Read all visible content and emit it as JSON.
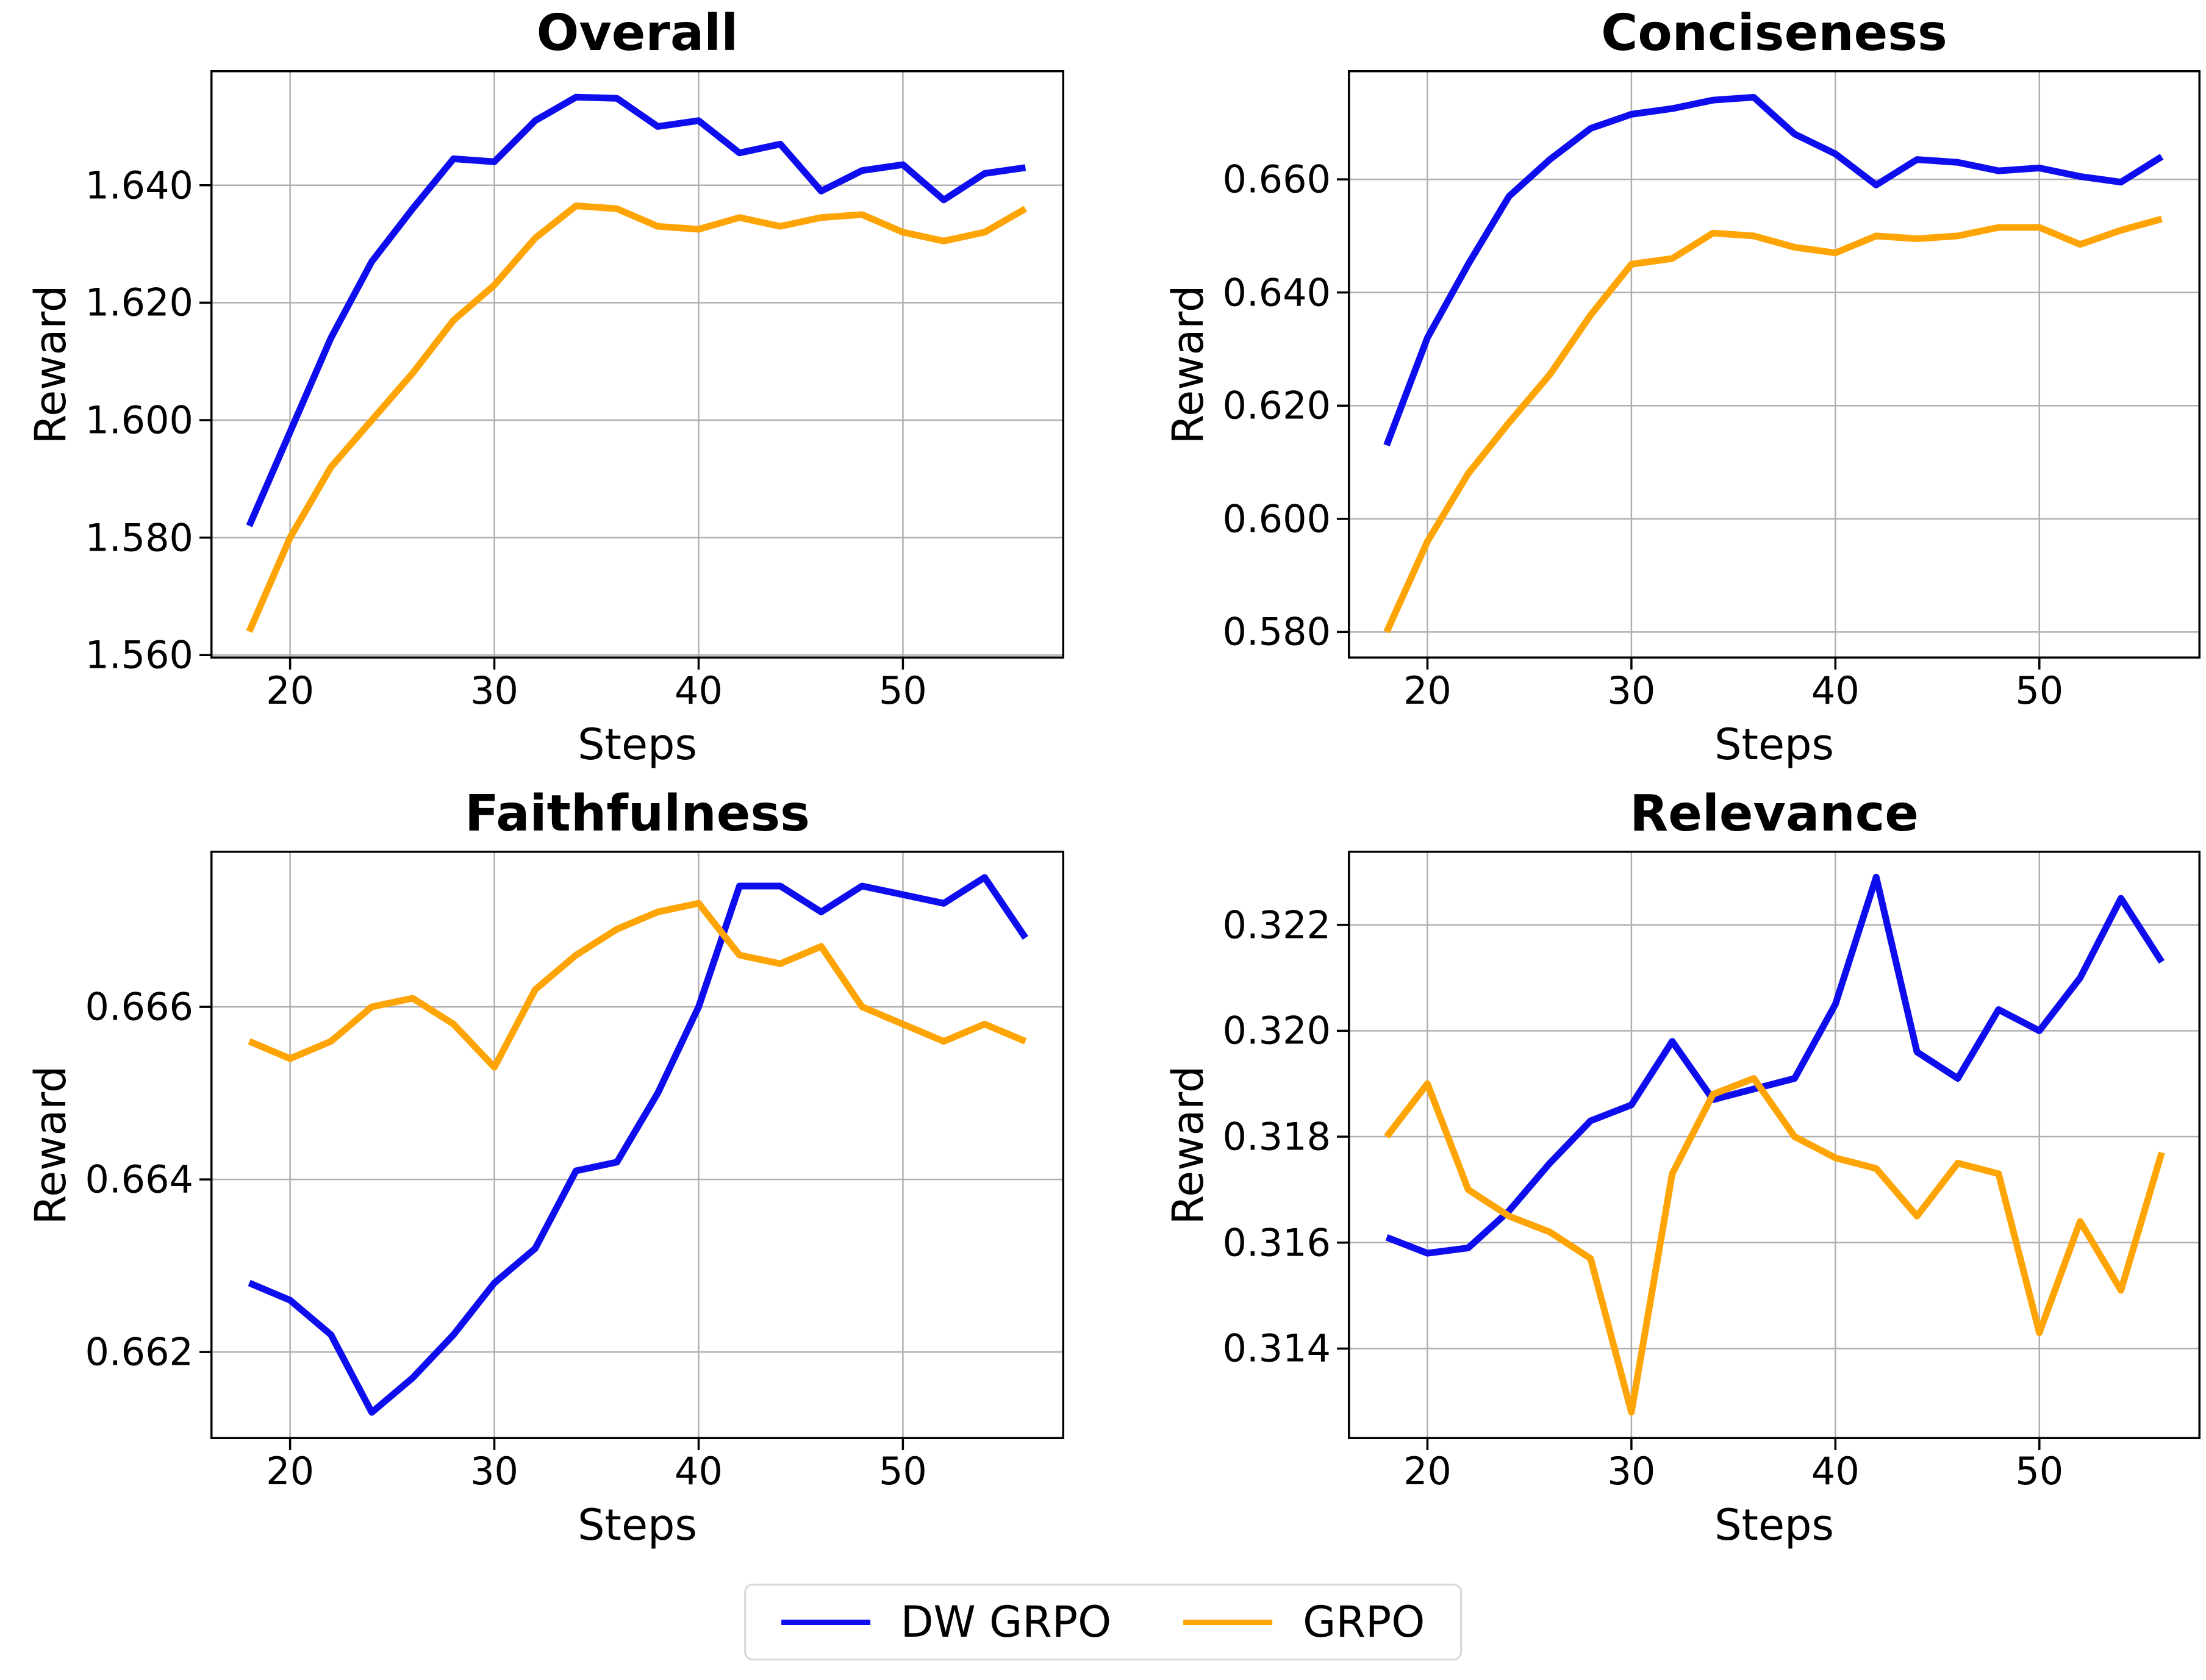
{
  "figure": {
    "background": "#ffffff",
    "grid_color": "#b0b0b0",
    "spine_color": "#000000"
  },
  "legend": {
    "position": "bottom-center",
    "border_color": "#d9d9d9",
    "entries": [
      {
        "label": "DW GRPO",
        "color": "#0d0dee"
      },
      {
        "label": "GRPO",
        "color": "#ffa405"
      }
    ]
  },
  "chart_data": [
    {
      "type": "line",
      "title": "Overall",
      "xlabel": "Steps",
      "ylabel": "Reward",
      "grid": true,
      "x": [
        18,
        20,
        22,
        24,
        26,
        28,
        30,
        32,
        34,
        36,
        38,
        40,
        42,
        44,
        46,
        48,
        50,
        52,
        54,
        56
      ],
      "xlim": [
        16.1,
        57.9
      ],
      "ylim": [
        1.5594,
        1.6596
      ],
      "xticks": [
        20,
        30,
        40,
        50
      ],
      "yticks": [
        1.56,
        1.58,
        1.6,
        1.62,
        1.64
      ],
      "ytick_decimals": 3,
      "series": [
        {
          "name": "DW GRPO",
          "color": "#0d0dee",
          "values": [
            1.582,
            1.598,
            1.614,
            1.627,
            1.636,
            1.6445,
            1.644,
            1.651,
            1.655,
            1.6548,
            1.65,
            1.651,
            1.6455,
            1.647,
            1.639,
            1.6425,
            1.6435,
            1.6375,
            1.642,
            1.643
          ]
        },
        {
          "name": "GRPO",
          "color": "#ffa405",
          "values": [
            1.564,
            1.58,
            1.592,
            1.6,
            1.608,
            1.617,
            1.623,
            1.631,
            1.6365,
            1.636,
            1.633,
            1.6325,
            1.6345,
            1.633,
            1.6345,
            1.635,
            1.632,
            1.6305,
            1.632,
            1.636
          ]
        }
      ]
    },
    {
      "type": "line",
      "title": "Conciseness",
      "xlabel": "Steps",
      "ylabel": "Reward",
      "grid": true,
      "x": [
        18,
        20,
        22,
        24,
        26,
        28,
        30,
        32,
        34,
        36,
        38,
        40,
        42,
        44,
        46,
        48,
        50,
        52,
        54,
        56
      ],
      "xlim": [
        16.1,
        57.9
      ],
      "ylim": [
        0.5753,
        0.6793
      ],
      "xticks": [
        20,
        30,
        40,
        50
      ],
      "yticks": [
        0.58,
        0.6,
        0.62,
        0.64,
        0.66
      ],
      "ytick_decimals": 3,
      "series": [
        {
          "name": "DW GRPO",
          "color": "#0d0dee",
          "values": [
            0.613,
            0.632,
            0.645,
            0.657,
            0.6635,
            0.669,
            0.6715,
            0.6725,
            0.674,
            0.6745,
            0.668,
            0.6645,
            0.659,
            0.6635,
            0.663,
            0.6615,
            0.662,
            0.6605,
            0.6595,
            0.664
          ]
        },
        {
          "name": "GRPO",
          "color": "#ffa405",
          "values": [
            0.58,
            0.596,
            0.608,
            0.617,
            0.6255,
            0.636,
            0.645,
            0.646,
            0.6505,
            0.65,
            0.648,
            0.647,
            0.65,
            0.6495,
            0.65,
            0.6515,
            0.6515,
            0.6485,
            0.651,
            0.653
          ]
        }
      ]
    },
    {
      "type": "line",
      "title": "Faithfulness",
      "xlabel": "Steps",
      "ylabel": "Reward",
      "grid": true,
      "x": [
        18,
        20,
        22,
        24,
        26,
        28,
        30,
        32,
        34,
        36,
        38,
        40,
        42,
        44,
        46,
        48,
        50,
        52,
        54,
        56
      ],
      "xlim": [
        16.1,
        57.9
      ],
      "ylim": [
        0.66099,
        0.66781
      ],
      "xticks": [
        20,
        30,
        40,
        50
      ],
      "yticks": [
        0.662,
        0.664,
        0.666
      ],
      "ytick_decimals": 3,
      "series": [
        {
          "name": "DW GRPO",
          "color": "#0d0dee",
          "values": [
            0.6628,
            0.6626,
            0.6622,
            0.6613,
            0.6617,
            0.6622,
            0.6628,
            0.6632,
            0.6641,
            0.6642,
            0.665,
            0.666,
            0.6674,
            0.6674,
            0.6671,
            0.6674,
            0.6673,
            0.6672,
            0.6675,
            0.6668
          ]
        },
        {
          "name": "GRPO",
          "color": "#ffa405",
          "values": [
            0.6656,
            0.6654,
            0.6656,
            0.666,
            0.6661,
            0.6658,
            0.6653,
            0.6662,
            0.6666,
            0.6669,
            0.6671,
            0.6672,
            0.6666,
            0.6665,
            0.6667,
            0.666,
            0.6658,
            0.6656,
            0.6658,
            0.6656
          ]
        }
      ]
    },
    {
      "type": "line",
      "title": "Relevance",
      "xlabel": "Steps",
      "ylabel": "Reward",
      "grid": true,
      "x": [
        18,
        20,
        22,
        24,
        26,
        28,
        30,
        32,
        34,
        36,
        38,
        40,
        42,
        44,
        46,
        48,
        50,
        52,
        54,
        56
      ],
      "xlim": [
        16.1,
        57.9
      ],
      "ylim": [
        0.31229,
        0.3234
      ],
      "xticks": [
        20,
        30,
        40,
        50
      ],
      "yticks": [
        0.314,
        0.316,
        0.318,
        0.32,
        0.322
      ],
      "ytick_decimals": 3,
      "series": [
        {
          "name": "DW GRPO",
          "color": "#0d0dee",
          "values": [
            0.3161,
            0.3158,
            0.3159,
            0.3166,
            0.3175,
            0.3183,
            0.3186,
            0.3198,
            0.3187,
            0.3189,
            0.3191,
            0.3205,
            0.3229,
            0.3196,
            0.3191,
            0.3204,
            0.32,
            0.321,
            0.3225,
            0.3213
          ]
        },
        {
          "name": "GRPO",
          "color": "#ffa405",
          "values": [
            0.318,
            0.319,
            0.317,
            0.3165,
            0.3162,
            0.3157,
            0.3128,
            0.3173,
            0.3188,
            0.3191,
            0.318,
            0.3176,
            0.3174,
            0.3165,
            0.3175,
            0.3173,
            0.3143,
            0.3164,
            0.3151,
            0.3177
          ]
        }
      ]
    }
  ]
}
